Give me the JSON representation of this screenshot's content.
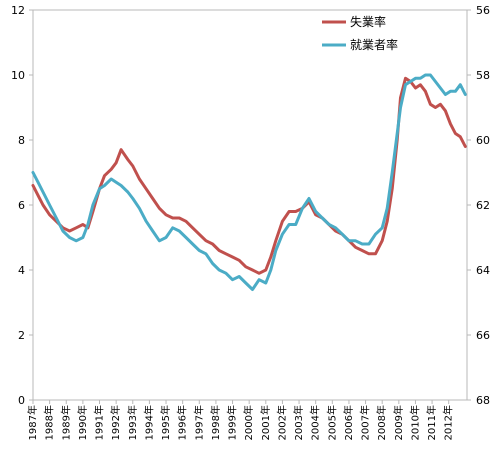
{
  "chart_data": {
    "type": "line",
    "legend_position": "top-right",
    "grid": false,
    "left_axis": {
      "min": 0,
      "max": 12,
      "ticks": [
        "0",
        "2",
        "4",
        "6",
        "8",
        "10",
        "12"
      ]
    },
    "right_axis": {
      "min": 56,
      "max": 68,
      "inverted": true,
      "ticks": [
        "56",
        "58",
        "60",
        "62",
        "64",
        "66",
        "68"
      ]
    },
    "x_range": [
      1987.0,
      2013.1
    ],
    "x_tick_years": [
      1987,
      1988,
      1989,
      1990,
      1991,
      1992,
      1993,
      1994,
      1995,
      1996,
      1997,
      1998,
      1999,
      2000,
      2001,
      2002,
      2003,
      2004,
      2005,
      2006,
      2007,
      2008,
      2009,
      2010,
      2011,
      2012
    ],
    "x_tick_labels": [
      "1987年",
      "1988年",
      "1989年",
      "1990年",
      "1991年",
      "1992年",
      "1993年",
      "1994年",
      "1995年",
      "1996年",
      "1997年",
      "1998年",
      "1999年",
      "2000年",
      "2001年",
      "2002年",
      "2003年",
      "2004年",
      "2005年",
      "2006年",
      "2007年",
      "2008年",
      "2009年",
      "2010年",
      "2011年",
      "2012年"
    ],
    "series": [
      {
        "name": "失業率",
        "axis": "left",
        "color": "#c0504d",
        "x": [
          1987.0,
          1987.3,
          1987.6,
          1988.0,
          1988.4,
          1988.8,
          1989.2,
          1989.6,
          1990.0,
          1990.3,
          1990.6,
          1991.0,
          1991.3,
          1991.7,
          1992.0,
          1992.3,
          1992.7,
          1993.0,
          1993.4,
          1993.8,
          1994.2,
          1994.6,
          1995.0,
          1995.4,
          1995.8,
          1996.2,
          1996.6,
          1997.0,
          1997.4,
          1997.8,
          1998.2,
          1998.6,
          1999.0,
          1999.4,
          1999.8,
          2000.2,
          2000.6,
          2001.0,
          2001.3,
          2001.6,
          2002.0,
          2002.4,
          2002.8,
          2003.2,
          2003.6,
          2004.0,
          2004.4,
          2004.8,
          2005.2,
          2005.6,
          2006.0,
          2006.4,
          2006.8,
          2007.2,
          2007.6,
          2008.0,
          2008.3,
          2008.6,
          2008.9,
          2009.1,
          2009.4,
          2009.7,
          2010.0,
          2010.3,
          2010.6,
          2010.9,
          2011.2,
          2011.5,
          2011.8,
          2012.1,
          2012.4,
          2012.7,
          2013.0
        ],
        "values": [
          6.6,
          6.3,
          6.0,
          5.7,
          5.5,
          5.3,
          5.2,
          5.3,
          5.4,
          5.3,
          5.8,
          6.5,
          6.9,
          7.1,
          7.3,
          7.7,
          7.4,
          7.2,
          6.8,
          6.5,
          6.2,
          5.9,
          5.7,
          5.6,
          5.6,
          5.5,
          5.3,
          5.1,
          4.9,
          4.8,
          4.6,
          4.5,
          4.4,
          4.3,
          4.1,
          4.0,
          3.9,
          4.0,
          4.4,
          4.9,
          5.5,
          5.8,
          5.8,
          5.9,
          6.1,
          5.7,
          5.6,
          5.4,
          5.2,
          5.1,
          4.9,
          4.7,
          4.6,
          4.5,
          4.5,
          4.9,
          5.5,
          6.5,
          8.0,
          9.3,
          9.9,
          9.8,
          9.6,
          9.7,
          9.5,
          9.1,
          9.0,
          9.1,
          8.9,
          8.5,
          8.2,
          8.1,
          7.8
        ]
      },
      {
        "name": "就業者率",
        "axis": "right",
        "color": "#4bacc6",
        "x": [
          1987.0,
          1987.3,
          1987.6,
          1988.0,
          1988.4,
          1988.8,
          1989.2,
          1989.6,
          1990.0,
          1990.3,
          1990.6,
          1991.0,
          1991.3,
          1991.7,
          1992.0,
          1992.3,
          1992.7,
          1993.0,
          1993.4,
          1993.8,
          1994.2,
          1994.6,
          1995.0,
          1995.4,
          1995.8,
          1996.2,
          1996.6,
          1997.0,
          1997.4,
          1997.8,
          1998.2,
          1998.6,
          1999.0,
          1999.4,
          1999.8,
          2000.2,
          2000.6,
          2001.0,
          2001.3,
          2001.6,
          2002.0,
          2002.4,
          2002.8,
          2003.2,
          2003.6,
          2004.0,
          2004.4,
          2004.8,
          2005.2,
          2005.6,
          2006.0,
          2006.4,
          2006.8,
          2007.2,
          2007.6,
          2008.0,
          2008.3,
          2008.6,
          2008.9,
          2009.1,
          2009.4,
          2009.7,
          2010.0,
          2010.3,
          2010.6,
          2010.9,
          2011.2,
          2011.5,
          2011.8,
          2012.1,
          2012.4,
          2012.7,
          2013.0
        ],
        "values": [
          61.0,
          61.3,
          61.6,
          62.0,
          62.4,
          62.8,
          63.0,
          63.1,
          63.0,
          62.6,
          62.0,
          61.5,
          61.4,
          61.2,
          61.3,
          61.4,
          61.6,
          61.8,
          62.1,
          62.5,
          62.8,
          63.1,
          63.0,
          62.7,
          62.8,
          63.0,
          63.2,
          63.4,
          63.5,
          63.8,
          64.0,
          64.1,
          64.3,
          64.2,
          64.4,
          64.6,
          64.3,
          64.4,
          64.0,
          63.4,
          62.9,
          62.6,
          62.6,
          62.1,
          61.8,
          62.2,
          62.4,
          62.6,
          62.7,
          62.9,
          63.1,
          63.1,
          63.2,
          63.2,
          62.9,
          62.7,
          62.1,
          61.0,
          59.8,
          59.0,
          58.3,
          58.2,
          58.1,
          58.1,
          58.0,
          58.0,
          58.2,
          58.4,
          58.6,
          58.5,
          58.5,
          58.3,
          58.6
        ]
      }
    ]
  }
}
